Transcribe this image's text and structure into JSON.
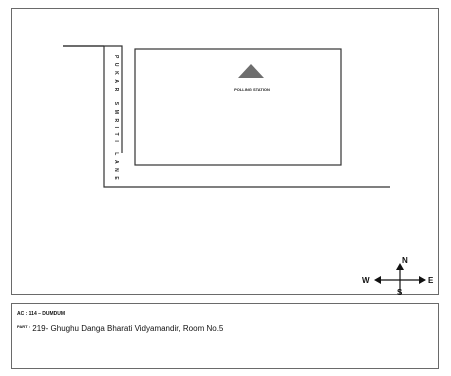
{
  "map": {
    "road_label": "PUKAR SMRITI LANE",
    "station_label": "POLLING STATION",
    "compass": {
      "north": "N",
      "south": "S",
      "east": "E",
      "west": "W"
    }
  },
  "info": {
    "ac_text": "AC : 114 – DUMDUM",
    "part_label": "PART :",
    "part_text": "219- Ghughu Danga Bharati Vidyamandir, Room No.5"
  },
  "colors": {
    "line": "#333333",
    "triangle": "#6e6e6e",
    "border": "#6a6a6a"
  }
}
